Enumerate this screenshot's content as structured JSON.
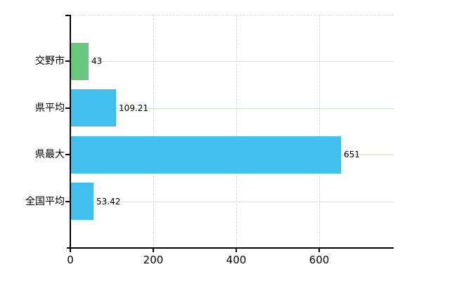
{
  "chart_data": {
    "type": "bar",
    "orientation": "horizontal",
    "title": "",
    "xlabel": "",
    "ylabel": "",
    "categories": [
      "交野市",
      "県平均",
      "県最大",
      "全国平均"
    ],
    "values": [
      43,
      109.21,
      651,
      53.42
    ],
    "value_labels": [
      "43",
      "109.21",
      "651",
      "53.42"
    ],
    "bar_colors": [
      "#68c97e",
      "#41bfef",
      "#41bfef",
      "#41bfef"
    ],
    "x_ticks": [
      0,
      200,
      400,
      600
    ],
    "x_tick_labels": [
      "0",
      "200",
      "400",
      "600"
    ],
    "xlim": [
      0,
      780
    ],
    "grid": true,
    "legend_position": "none"
  },
  "colors": {
    "background": "#ffffff",
    "axis": "#000000",
    "bar_green": "#68c97e",
    "bar_blue": "#41bfef",
    "grid_horizontal": "#d7ded2",
    "grid_vertical": "#d9d9d9",
    "text": "#000000"
  }
}
